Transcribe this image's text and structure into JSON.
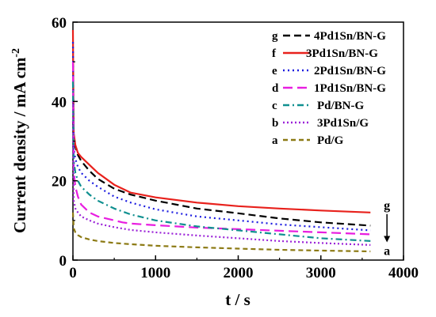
{
  "chart_data": {
    "type": "line",
    "xlabel": "t / s",
    "ylabel": "Current density / mA cm",
    "ylabel_superscript": "-2",
    "xlim": [
      0,
      4000
    ],
    "ylim": [
      0,
      60
    ],
    "xticks": [
      0,
      1000,
      2000,
      3000,
      4000
    ],
    "yticks": [
      0,
      20,
      40,
      60
    ],
    "grid": false,
    "legend_position": "top-right",
    "series": [
      {
        "letter": "g",
        "name": "4Pd1Sn/BN-G",
        "color": "#000000",
        "dash": "9,5",
        "x": [
          0,
          10,
          30,
          60,
          100,
          200,
          300,
          500,
          700,
          1000,
          1500,
          2000,
          2500,
          3000,
          3600
        ],
        "y": [
          35,
          31,
          28.5,
          26.5,
          25,
          22.5,
          20.5,
          18,
          16.5,
          15,
          13,
          11.8,
          10.5,
          9.5,
          8.7
        ]
      },
      {
        "letter": "f",
        "name": "3Pd1Sn/BN-G",
        "color": "#e8211c",
        "dash": "",
        "x": [
          0,
          10,
          30,
          60,
          100,
          200,
          300,
          500,
          700,
          1000,
          1500,
          2000,
          2500,
          3000,
          3600
        ],
        "y": [
          58,
          32,
          29,
          27,
          26,
          24,
          22,
          19,
          17,
          15.8,
          14.5,
          13.6,
          13,
          12.5,
          12
        ]
      },
      {
        "letter": "e",
        "name": "2Pd1Sn/BN-G",
        "color": "#1c1ce0",
        "dash": "2,4",
        "x": [
          0,
          10,
          30,
          60,
          100,
          200,
          300,
          500,
          700,
          1000,
          1500,
          2000,
          2500,
          3000,
          3600
        ],
        "y": [
          55,
          28,
          25.5,
          23.5,
          22,
          20,
          18.5,
          16,
          14.5,
          12.8,
          11,
          10,
          9,
          8.3,
          7.5
        ]
      },
      {
        "letter": "d",
        "name": "1Pd1Sn/BN-G",
        "color": "#e81ee0",
        "dash": "12,6",
        "x": [
          0,
          10,
          30,
          60,
          100,
          200,
          300,
          500,
          600,
          700,
          1000,
          1500,
          2000,
          2500,
          3000,
          3600
        ],
        "y": [
          50,
          22,
          18.5,
          16,
          14,
          12,
          11,
          10,
          9.5,
          9.2,
          8.8,
          8.2,
          7.8,
          7.4,
          7,
          6.5
        ]
      },
      {
        "letter": "c",
        "name": "Pd/BN-G",
        "color": "#109090",
        "dash": "8,4,2,4",
        "x": [
          0,
          10,
          30,
          60,
          100,
          200,
          300,
          500,
          700,
          1000,
          1500,
          2000,
          2500,
          3000,
          3600
        ],
        "y": [
          45,
          25,
          22,
          20,
          18.5,
          16.5,
          15,
          13,
          11.5,
          10,
          8.5,
          7.5,
          6.5,
          5.5,
          4.8
        ]
      },
      {
        "letter": "b",
        "name": "3Pd1Sn/G",
        "color": "#9b22d8",
        "dash": "2,3",
        "x": [
          0,
          10,
          30,
          60,
          100,
          200,
          300,
          500,
          700,
          1000,
          1500,
          2000,
          2500,
          3000,
          3600
        ],
        "y": [
          40,
          15,
          13,
          12,
          11,
          10,
          9.2,
          8.3,
          7.6,
          7,
          6.2,
          5.5,
          4.8,
          4.3,
          3.8
        ]
      },
      {
        "letter": "a",
        "name": "Pd/G",
        "color": "#8c7a14",
        "dash": "6,4",
        "x": [
          0,
          10,
          30,
          60,
          100,
          200,
          300,
          500,
          700,
          1000,
          1500,
          2000,
          2500,
          3000,
          3600
        ],
        "y": [
          12,
          8,
          7,
          6.3,
          5.8,
          5.2,
          4.8,
          4.3,
          4,
          3.6,
          3.2,
          2.9,
          2.6,
          2.4,
          2.2
        ]
      }
    ],
    "annotations": [
      {
        "text": "g",
        "x": 3800,
        "y": 14
      },
      {
        "text": "a",
        "x": 3800,
        "y": 2.5
      }
    ]
  }
}
